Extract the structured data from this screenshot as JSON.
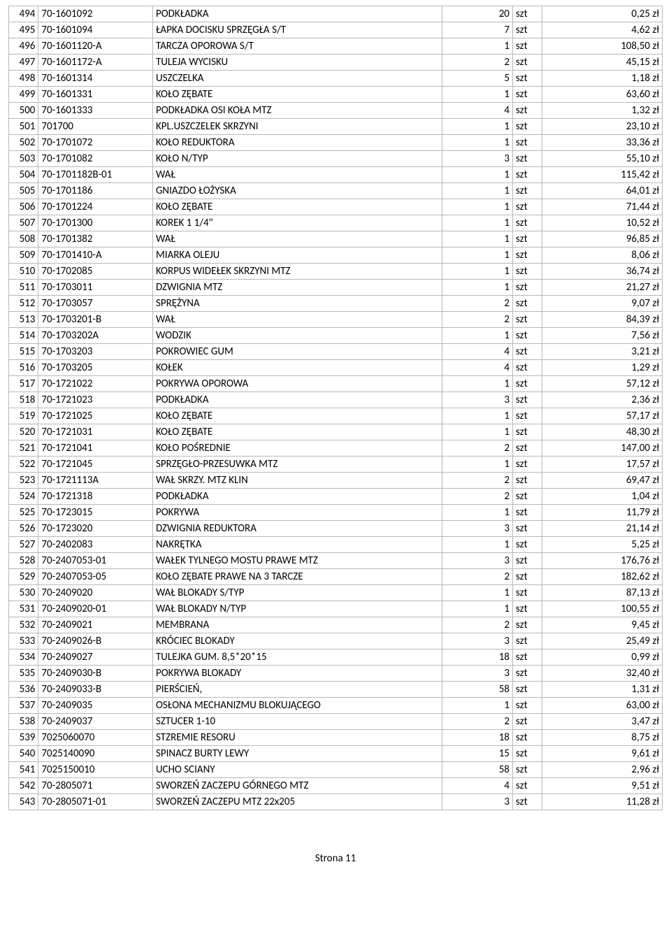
{
  "footer": "Strona 11",
  "columns": [
    "lp",
    "code",
    "desc",
    "qty",
    "unit",
    "price"
  ],
  "rows": [
    {
      "lp": "494",
      "code": "70-1601092",
      "desc": "PODKŁADKA",
      "qty": "20",
      "unit": "szt",
      "price": "0,25 zł"
    },
    {
      "lp": "495",
      "code": "70-1601094",
      "desc": "ŁAPKA DOCISKU SPRZĘGŁA S/T",
      "qty": "7",
      "unit": "szt",
      "price": "4,62 zł"
    },
    {
      "lp": "496",
      "code": "70-1601120-A",
      "desc": "TARCZA OPOROWA S/T",
      "qty": "1",
      "unit": "szt",
      "price": "108,50 zł"
    },
    {
      "lp": "497",
      "code": "70-1601172-A",
      "desc": "TULEJA WYCISKU",
      "qty": "2",
      "unit": "szt",
      "price": "45,15 zł"
    },
    {
      "lp": "498",
      "code": "70-1601314",
      "desc": "USZCZELKA",
      "qty": "5",
      "unit": "szt",
      "price": "1,18 zł"
    },
    {
      "lp": "499",
      "code": "70-1601331",
      "desc": "KOŁO ZĘBATE",
      "qty": "1",
      "unit": "szt",
      "price": "63,60 zł"
    },
    {
      "lp": "500",
      "code": "70-1601333",
      "desc": "PODKŁADKA OSI KOŁA MTZ",
      "qty": "4",
      "unit": "szt",
      "price": "1,32 zł"
    },
    {
      "lp": "501",
      "code": "701700",
      "desc": "KPL.USZCZELEK SKRZYNI",
      "qty": "1",
      "unit": "szt",
      "price": "23,10 zł"
    },
    {
      "lp": "502",
      "code": "70-1701072",
      "desc": "KOŁO REDUKTORA",
      "qty": "1",
      "unit": "szt",
      "price": "33,36 zł"
    },
    {
      "lp": "503",
      "code": "70-1701082",
      "desc": "KOŁO N/TYP",
      "qty": "3",
      "unit": "szt",
      "price": "55,10 zł"
    },
    {
      "lp": "504",
      "code": "70-1701182B-01",
      "desc": "WAŁ",
      "qty": "1",
      "unit": "szt",
      "price": "115,42 zł"
    },
    {
      "lp": "505",
      "code": "70-1701186",
      "desc": "GNIAZDO ŁOŻYSKA",
      "qty": "1",
      "unit": "szt",
      "price": "64,01 zł"
    },
    {
      "lp": "506",
      "code": "70-1701224",
      "desc": "KOŁO ZĘBATE",
      "qty": "1",
      "unit": "szt",
      "price": "71,44 zł"
    },
    {
      "lp": "507",
      "code": "70-1701300",
      "desc": "KOREK 1 1/4\"",
      "qty": "1",
      "unit": "szt",
      "price": "10,52 zł"
    },
    {
      "lp": "508",
      "code": "70-1701382",
      "desc": "WAŁ",
      "qty": "1",
      "unit": "szt",
      "price": "96,85 zł"
    },
    {
      "lp": "509",
      "code": "70-1701410-A",
      "desc": "MIARKA OLEJU",
      "qty": "1",
      "unit": "szt",
      "price": "8,06 zł"
    },
    {
      "lp": "510",
      "code": "70-1702085",
      "desc": "KORPUS WIDEŁEK SKRZYNI MTZ",
      "qty": "1",
      "unit": "szt",
      "price": "36,74 zł"
    },
    {
      "lp": "511",
      "code": "70-1703011",
      "desc": "DZWIGNIA MTZ",
      "qty": "1",
      "unit": "szt",
      "price": "21,27 zł"
    },
    {
      "lp": "512",
      "code": "70-1703057",
      "desc": "SPRĘŻYNA",
      "qty": "2",
      "unit": "szt",
      "price": "9,07 zł"
    },
    {
      "lp": "513",
      "code": "70-1703201-B",
      "desc": "WAŁ",
      "qty": "2",
      "unit": "szt",
      "price": "84,39 zł"
    },
    {
      "lp": "514",
      "code": "70-1703202A",
      "desc": "WODZIK",
      "qty": "1",
      "unit": "szt",
      "price": "7,56 zł"
    },
    {
      "lp": "515",
      "code": "70-1703203",
      "desc": "POKROWIEC GUM",
      "qty": "4",
      "unit": "szt",
      "price": "3,21 zł"
    },
    {
      "lp": "516",
      "code": "70-1703205",
      "desc": "KOŁEK",
      "qty": "4",
      "unit": "szt",
      "price": "1,29 zł"
    },
    {
      "lp": "517",
      "code": "70-1721022",
      "desc": "POKRYWA OPOROWA",
      "qty": "1",
      "unit": "szt",
      "price": "57,12 zł"
    },
    {
      "lp": "518",
      "code": "70-1721023",
      "desc": "PODKŁADKA",
      "qty": "3",
      "unit": "szt",
      "price": "2,36 zł"
    },
    {
      "lp": "519",
      "code": "70-1721025",
      "desc": "KOŁO ZĘBATE",
      "qty": "1",
      "unit": "szt",
      "price": "57,17 zł"
    },
    {
      "lp": "520",
      "code": "70-1721031",
      "desc": "KOŁO ZĘBATE",
      "qty": "1",
      "unit": "szt",
      "price": "48,30 zł"
    },
    {
      "lp": "521",
      "code": "70-1721041",
      "desc": "KOŁO POŚREDNIE",
      "qty": "2",
      "unit": "szt",
      "price": "147,00 zł"
    },
    {
      "lp": "522",
      "code": "70-1721045",
      "desc": "SPRZĘGŁO-PRZESUWKA MTZ",
      "qty": "1",
      "unit": "szt",
      "price": "17,57 zł"
    },
    {
      "lp": "523",
      "code": "70-1721113A",
      "desc": "WAŁ SKRZY. MTZ KLIN",
      "qty": "2",
      "unit": "szt",
      "price": "69,47 zł"
    },
    {
      "lp": "524",
      "code": "70-1721318",
      "desc": "PODKŁADKA",
      "qty": "2",
      "unit": "szt",
      "price": "1,04 zł"
    },
    {
      "lp": "525",
      "code": "70-1723015",
      "desc": "POKRYWA",
      "qty": "1",
      "unit": "szt",
      "price": "11,79 zł"
    },
    {
      "lp": "526",
      "code": "70-1723020",
      "desc": "DZWIGNIA REDUKTORA",
      "qty": "3",
      "unit": "szt",
      "price": "21,14 zł"
    },
    {
      "lp": "527",
      "code": "70-2402083",
      "desc": "NAKRĘTKA",
      "qty": "1",
      "unit": "szt",
      "price": "5,25 zł"
    },
    {
      "lp": "528",
      "code": "70-2407053-01",
      "desc": "WAŁEK TYLNEGO MOSTU PRAWE MTZ",
      "qty": "3",
      "unit": "szt",
      "price": "176,76 zł"
    },
    {
      "lp": "529",
      "code": "70-2407053-05",
      "desc": "KOŁO ZĘBATE PRAWE NA 3 TARCZE",
      "qty": "2",
      "unit": "szt",
      "price": "182,62 zł"
    },
    {
      "lp": "530",
      "code": "70-2409020",
      "desc": "WAŁ BLOKADY S/TYP",
      "qty": "1",
      "unit": "szt",
      "price": "87,13 zł"
    },
    {
      "lp": "531",
      "code": "70-2409020-01",
      "desc": "WAŁ BLOKADY N/TYP",
      "qty": "1",
      "unit": "szt",
      "price": "100,55 zł"
    },
    {
      "lp": "532",
      "code": "70-2409021",
      "desc": "MEMBRANA",
      "qty": "2",
      "unit": "szt",
      "price": "9,45 zł"
    },
    {
      "lp": "533",
      "code": "70-2409026-B",
      "desc": "KRÓCIEC BLOKADY",
      "qty": "3",
      "unit": "szt",
      "price": "25,49 zł"
    },
    {
      "lp": "534",
      "code": "70-2409027",
      "desc": "TULEJKA GUM. 8,5*20*15",
      "qty": "18",
      "unit": "szt",
      "price": "0,99 zł"
    },
    {
      "lp": "535",
      "code": "70-2409030-B",
      "desc": "POKRYWA BLOKADY",
      "qty": "3",
      "unit": "szt",
      "price": "32,40 zł"
    },
    {
      "lp": "536",
      "code": "70-2409033-B",
      "desc": "PIERŚCIEŃ,",
      "qty": "58",
      "unit": "szt",
      "price": "1,31 zł"
    },
    {
      "lp": "537",
      "code": "70-2409035",
      "desc": "OSŁONA MECHANIZMU BLOKUJĄCEGO",
      "qty": "1",
      "unit": "szt",
      "price": "63,00 zł"
    },
    {
      "lp": "538",
      "code": "70-2409037",
      "desc": "SZTUCER 1-10",
      "qty": "2",
      "unit": "szt",
      "price": "3,47 zł"
    },
    {
      "lp": "539",
      "code": "7025060070",
      "desc": "STZREMIE RESORU",
      "qty": "18",
      "unit": "szt",
      "price": "8,75 zł"
    },
    {
      "lp": "540",
      "code": "7025140090",
      "desc": "SPINACZ BURTY LEWY",
      "qty": "15",
      "unit": "szt",
      "price": "9,61 zł"
    },
    {
      "lp": "541",
      "code": "7025150010",
      "desc": "UCHO SCIANY",
      "qty": "58",
      "unit": "szt",
      "price": "2,96 zł"
    },
    {
      "lp": "542",
      "code": "70-2805071",
      "desc": "SWORZEŃ ZACZEPU GÓRNEGO MTZ",
      "qty": "4",
      "unit": "szt",
      "price": "9,51 zł"
    },
    {
      "lp": "543",
      "code": "70-2805071-01",
      "desc": "SWORZEŃ ZACZEPU MTZ 22x205",
      "qty": "3",
      "unit": "szt",
      "price": "11,28 zł"
    }
  ]
}
